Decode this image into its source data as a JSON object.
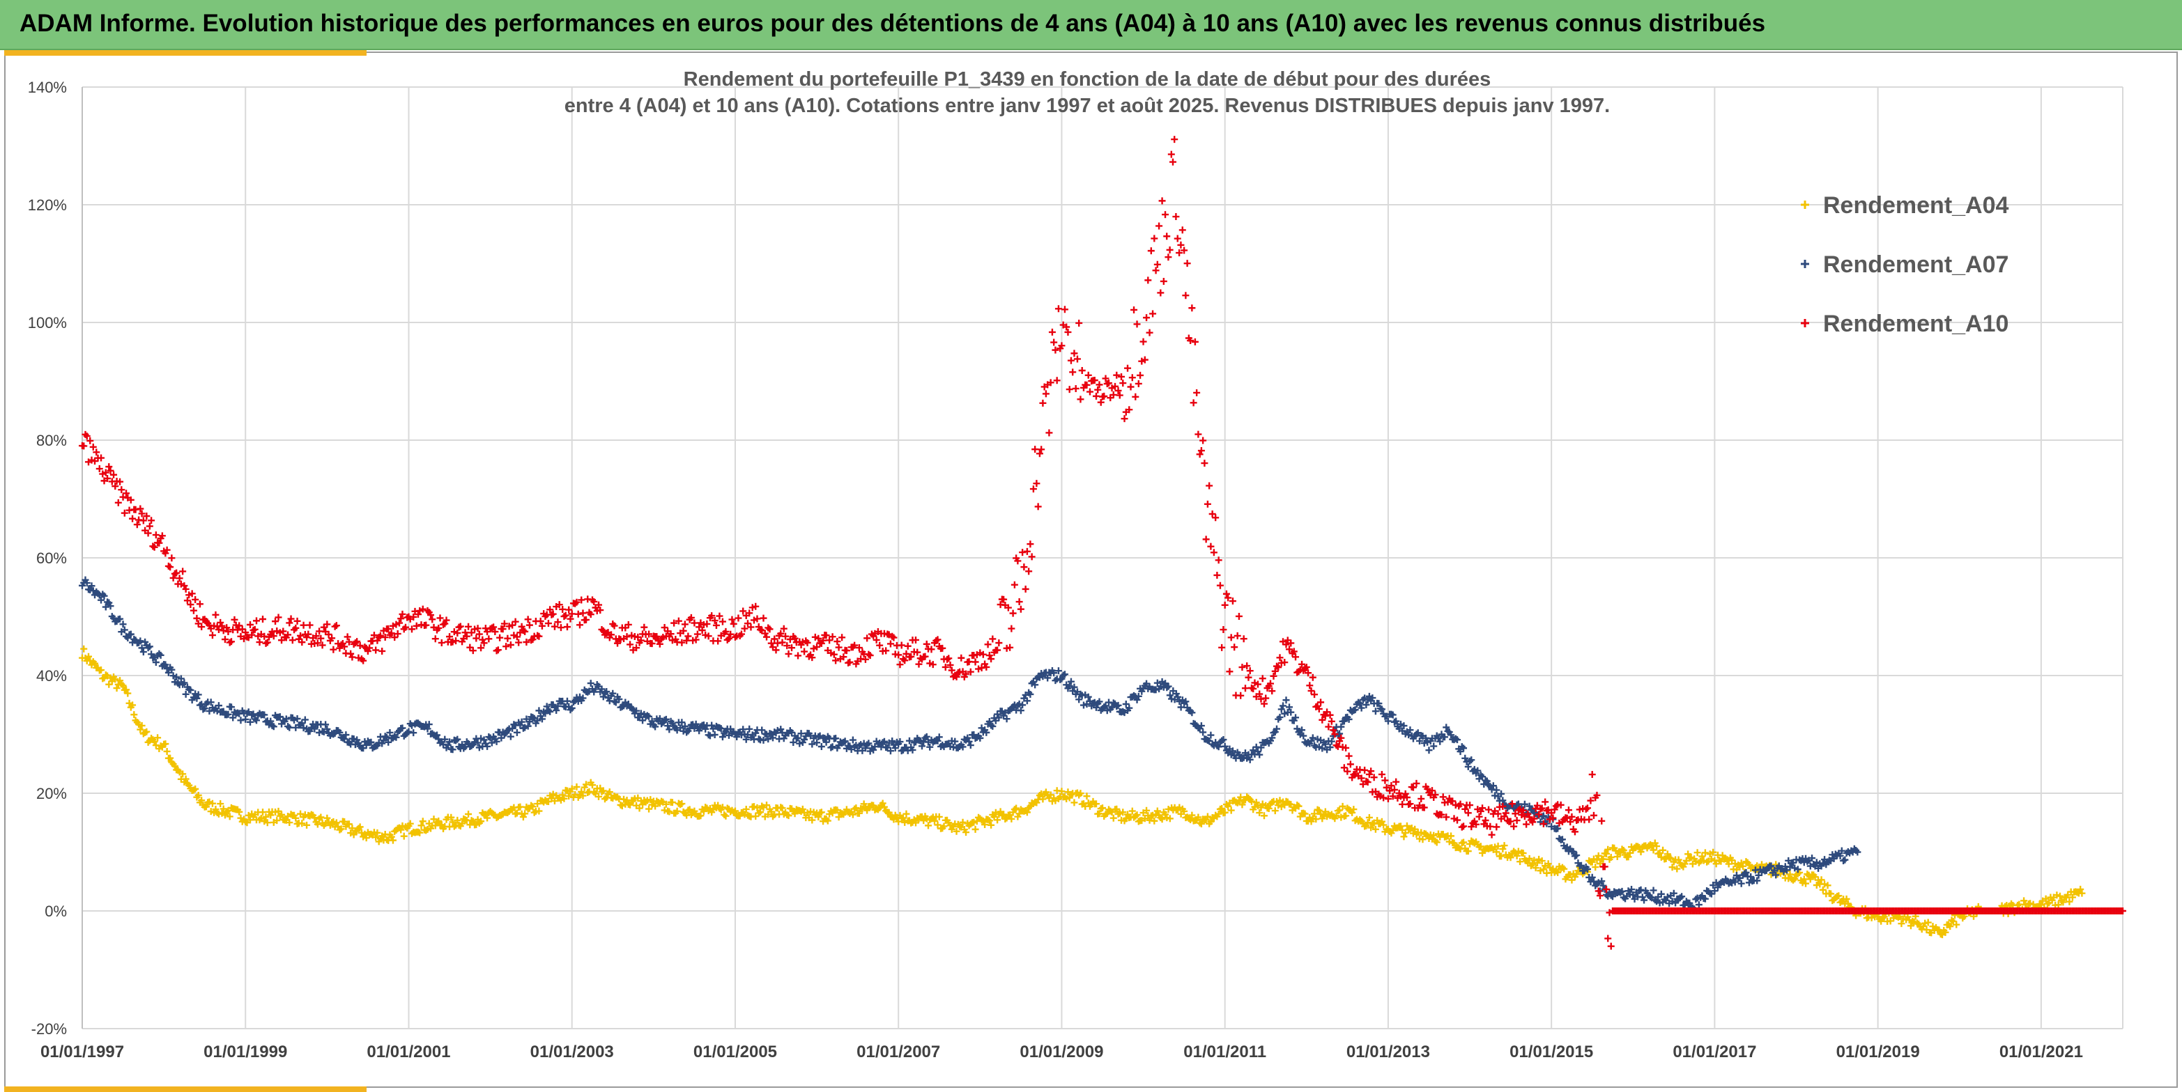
{
  "banner": {
    "title": "ADAM Informe. Evolution historique des performances en euros pour des détentions de 4 ans (A04) à 10 ans (A10) avec les revenus connus distribués"
  },
  "colors": {
    "banner_bg": "#7cc47a",
    "accent": "#f2b320",
    "A04": "#f2c200",
    "A07": "#2e4a7c",
    "A10": "#e8000e",
    "grid": "#d9d9d9"
  },
  "chart_data": {
    "type": "scatter",
    "title": "Rendement du portefeuille P1_3439 en fonction de la date de début pour des durées",
    "subtitle": "entre 4 (A04) et 10 ans (A10). Cotations entre janv 1997 et août 2025. Revenus DISTRIBUES depuis janv 1997.",
    "x_ticks": [
      "01/01/1997",
      "01/01/1999",
      "01/01/2001",
      "01/01/2003",
      "01/01/2005",
      "01/01/2007",
      "01/01/2009",
      "01/01/2011",
      "01/01/2013",
      "01/01/2015",
      "01/01/2017",
      "01/01/2019",
      "01/01/2021"
    ],
    "y_ticks": [
      "-20%",
      "0%",
      "20%",
      "40%",
      "60%",
      "80%",
      "100%",
      "120%",
      "140%"
    ],
    "xlim": [
      1997.0,
      2022.0
    ],
    "ylim": [
      -20,
      140
    ],
    "y_unit": "%",
    "marker": "+",
    "grid": true,
    "legend": "right",
    "series": [
      {
        "name": "Rendement_A04",
        "points": [
          [
            1997.0,
            44
          ],
          [
            1997.25,
            40
          ],
          [
            1997.5,
            38
          ],
          [
            1997.75,
            30
          ],
          [
            1998.0,
            28
          ],
          [
            1998.25,
            22
          ],
          [
            1998.5,
            18
          ],
          [
            1998.75,
            17
          ],
          [
            1999.0,
            16
          ],
          [
            1999.5,
            16
          ],
          [
            2000.0,
            15
          ],
          [
            2000.5,
            13
          ],
          [
            2000.75,
            12.5
          ],
          [
            2001.0,
            14
          ],
          [
            2001.5,
            15
          ],
          [
            2002.0,
            16
          ],
          [
            2002.5,
            17
          ],
          [
            2002.75,
            19
          ],
          [
            2003.0,
            20
          ],
          [
            2003.25,
            21
          ],
          [
            2003.5,
            19
          ],
          [
            2004.0,
            18
          ],
          [
            2004.5,
            17
          ],
          [
            2005.0,
            17
          ],
          [
            2005.5,
            17
          ],
          [
            2006.0,
            16
          ],
          [
            2006.5,
            17
          ],
          [
            2006.75,
            18
          ],
          [
            2007.0,
            16
          ],
          [
            2007.5,
            15
          ],
          [
            2007.75,
            14
          ],
          [
            2008.0,
            15
          ],
          [
            2008.5,
            17
          ],
          [
            2008.75,
            19
          ],
          [
            2009.0,
            20
          ],
          [
            2009.25,
            19
          ],
          [
            2009.5,
            17
          ],
          [
            2009.75,
            16
          ],
          [
            2010.0,
            16
          ],
          [
            2010.5,
            17
          ],
          [
            2010.75,
            15
          ],
          [
            2011.0,
            17
          ],
          [
            2011.25,
            19
          ],
          [
            2011.5,
            17
          ],
          [
            2011.75,
            19
          ],
          [
            2012.0,
            16
          ],
          [
            2012.5,
            17
          ],
          [
            2012.75,
            15
          ],
          [
            2013.0,
            14
          ],
          [
            2013.5,
            13
          ],
          [
            2013.75,
            12
          ],
          [
            2014.0,
            11
          ],
          [
            2014.5,
            10
          ],
          [
            2015.0,
            7
          ],
          [
            2015.25,
            6
          ],
          [
            2015.5,
            8
          ],
          [
            2015.75,
            10
          ],
          [
            2016.0,
            10
          ],
          [
            2016.25,
            11
          ],
          [
            2016.5,
            8
          ],
          [
            2016.75,
            9
          ],
          [
            2017.0,
            9
          ],
          [
            2017.25,
            8
          ],
          [
            2017.5,
            7
          ],
          [
            2017.75,
            7
          ],
          [
            2018.0,
            6
          ],
          [
            2018.25,
            5
          ],
          [
            2018.5,
            2
          ],
          [
            2018.75,
            0
          ],
          [
            2019.0,
            -1
          ],
          [
            2019.25,
            -1
          ],
          [
            2019.5,
            -2
          ],
          [
            2019.75,
            -4
          ],
          [
            2020.0,
            -1
          ],
          [
            2020.25,
            0
          ],
          [
            2020.5,
            0
          ],
          [
            2020.75,
            1
          ],
          [
            2021.0,
            1
          ],
          [
            2021.25,
            2
          ],
          [
            2021.5,
            3
          ]
        ]
      },
      {
        "name": "Rendement_A07",
        "points": [
          [
            1997.0,
            56
          ],
          [
            1997.25,
            53
          ],
          [
            1997.5,
            48
          ],
          [
            1997.75,
            45
          ],
          [
            1998.0,
            42
          ],
          [
            1998.25,
            38
          ],
          [
            1998.5,
            35
          ],
          [
            1998.75,
            34
          ],
          [
            1999.0,
            33
          ],
          [
            1999.5,
            32
          ],
          [
            2000.0,
            31
          ],
          [
            2000.5,
            28
          ],
          [
            2001.0,
            31
          ],
          [
            2001.25,
            31
          ],
          [
            2001.5,
            28
          ],
          [
            2002.0,
            29
          ],
          [
            2002.5,
            32
          ],
          [
            2002.75,
            35
          ],
          [
            2003.0,
            35
          ],
          [
            2003.25,
            38
          ],
          [
            2003.5,
            36
          ],
          [
            2004.0,
            32
          ],
          [
            2004.5,
            31
          ],
          [
            2005.0,
            30
          ],
          [
            2005.5,
            30
          ],
          [
            2006.0,
            29
          ],
          [
            2006.5,
            28
          ],
          [
            2007.0,
            28
          ],
          [
            2007.5,
            29
          ],
          [
            2007.75,
            28
          ],
          [
            2008.0,
            30
          ],
          [
            2008.25,
            33
          ],
          [
            2008.5,
            35
          ],
          [
            2008.75,
            40
          ],
          [
            2009.0,
            40
          ],
          [
            2009.25,
            36
          ],
          [
            2009.5,
            35
          ],
          [
            2009.75,
            34
          ],
          [
            2010.0,
            38
          ],
          [
            2010.25,
            38
          ],
          [
            2010.5,
            35
          ],
          [
            2010.75,
            30
          ],
          [
            2011.0,
            28
          ],
          [
            2011.25,
            26
          ],
          [
            2011.5,
            28
          ],
          [
            2011.75,
            35
          ],
          [
            2012.0,
            29
          ],
          [
            2012.25,
            28
          ],
          [
            2012.5,
            33
          ],
          [
            2012.75,
            36
          ],
          [
            2013.0,
            33
          ],
          [
            2013.5,
            28
          ],
          [
            2013.75,
            31
          ],
          [
            2014.0,
            25
          ],
          [
            2014.25,
            21
          ],
          [
            2014.5,
            18
          ],
          [
            2014.75,
            17
          ],
          [
            2015.0,
            15
          ],
          [
            2015.25,
            10
          ],
          [
            2015.5,
            5
          ],
          [
            2015.75,
            3
          ],
          [
            2016.0,
            3
          ],
          [
            2016.5,
            2
          ],
          [
            2016.75,
            1
          ],
          [
            2017.0,
            4
          ],
          [
            2017.5,
            6
          ],
          [
            2018.0,
            8
          ],
          [
            2018.25,
            8
          ],
          [
            2018.5,
            9
          ],
          [
            2018.75,
            10
          ]
        ]
      },
      {
        "name": "Rendement_A10",
        "points": [
          [
            1997.0,
            80
          ],
          [
            1997.25,
            75
          ],
          [
            1997.5,
            70
          ],
          [
            1997.75,
            66
          ],
          [
            1998.0,
            62
          ],
          [
            1998.25,
            55
          ],
          [
            1998.5,
            49
          ],
          [
            1998.75,
            48
          ],
          [
            1999.0,
            47
          ],
          [
            1999.5,
            48
          ],
          [
            2000.0,
            47
          ],
          [
            2000.5,
            44
          ],
          [
            2001.0,
            50
          ],
          [
            2001.25,
            49
          ],
          [
            2001.5,
            47
          ],
          [
            2002.0,
            46
          ],
          [
            2002.5,
            48
          ],
          [
            2002.75,
            50
          ],
          [
            2003.0,
            50
          ],
          [
            2003.25,
            52
          ],
          [
            2003.5,
            47
          ],
          [
            2004.0,
            46
          ],
          [
            2004.5,
            48
          ],
          [
            2005.0,
            48
          ],
          [
            2005.25,
            50
          ],
          [
            2005.5,
            46
          ],
          [
            2006.0,
            45
          ],
          [
            2006.5,
            44
          ],
          [
            2006.75,
            46
          ],
          [
            2007.0,
            44
          ],
          [
            2007.5,
            44
          ],
          [
            2007.75,
            41
          ],
          [
            2008.0,
            43
          ],
          [
            2008.25,
            45
          ],
          [
            2008.5,
            55
          ],
          [
            2008.75,
            80
          ],
          [
            2009.0,
            100
          ],
          [
            2009.25,
            90
          ],
          [
            2009.5,
            88
          ],
          [
            2009.75,
            90
          ],
          [
            2010.0,
            100
          ],
          [
            2010.25,
            115
          ],
          [
            2010.4,
            125
          ],
          [
            2010.5,
            110
          ],
          [
            2010.75,
            70
          ],
          [
            2011.0,
            50
          ],
          [
            2011.25,
            40
          ],
          [
            2011.5,
            37
          ],
          [
            2011.75,
            45
          ],
          [
            2012.0,
            40
          ],
          [
            2012.25,
            33
          ],
          [
            2012.5,
            25
          ],
          [
            2012.75,
            22
          ],
          [
            2013.0,
            21
          ],
          [
            2013.5,
            19
          ],
          [
            2013.75,
            17
          ],
          [
            2014.0,
            16
          ],
          [
            2014.25,
            15
          ],
          [
            2014.5,
            16
          ],
          [
            2014.75,
            17
          ],
          [
            2015.0,
            17
          ],
          [
            2015.25,
            15
          ],
          [
            2015.5,
            17
          ],
          [
            2015.75,
            0
          ],
          [
            2016.0,
            0
          ],
          [
            2017.0,
            0
          ],
          [
            2018.0,
            0
          ],
          [
            2019.0,
            0
          ],
          [
            2020.0,
            0
          ],
          [
            2021.0,
            0
          ],
          [
            2022.0,
            0
          ]
        ]
      }
    ]
  }
}
